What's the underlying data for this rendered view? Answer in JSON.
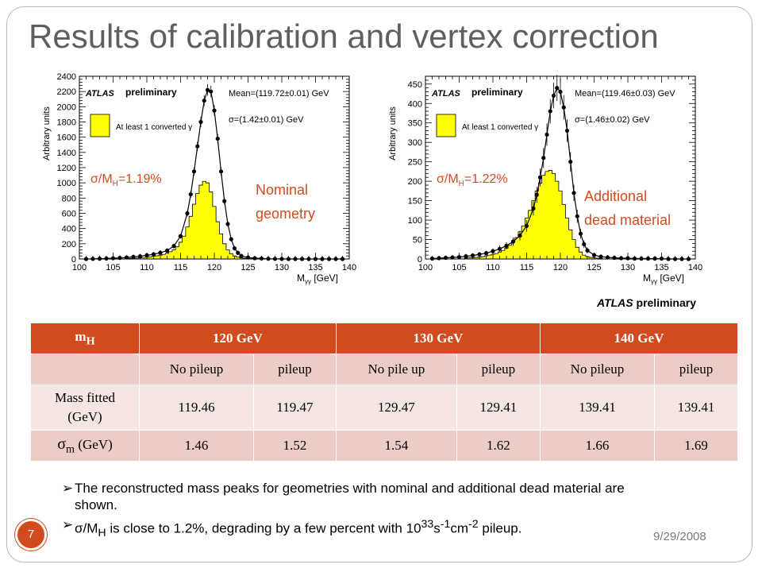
{
  "slide": {
    "title": "Results of calibration and vertex correction",
    "atlas_preliminary_bold": "ATLAS",
    "atlas_preliminary_rest": " preliminary",
    "page_number": "7",
    "date": "9/29/2008",
    "accent_color": "#d24b1f"
  },
  "chart_data": [
    {
      "type": "histogram",
      "xlabel": "M",
      "xlabel_sub": "γγ",
      "xlabel_unit": " [GeV]",
      "ylabel": "Arbitrary units",
      "xlim": [
        100,
        140
      ],
      "ylim": [
        0,
        2400
      ],
      "xticks": [
        100,
        105,
        110,
        115,
        120,
        125,
        130,
        135,
        140
      ],
      "yticks": [
        0,
        200,
        400,
        600,
        800,
        1000,
        1200,
        1400,
        1600,
        1800,
        2000,
        2200,
        2400
      ],
      "atlas_label": "ATLAS",
      "prelim_label": "preliminary",
      "legend": "At least 1 converted γ",
      "mean_text": "Mean=(119.72±0.01) GeV",
      "sigma_text": "σ=(1.42±0.01) GeV",
      "resolution_text": "σ/M",
      "resolution_sub": "H",
      "resolution_value": "=1.19%",
      "geometry_line1": "Nominal",
      "geometry_line2": "geometry",
      "hist_bin_width": 0.5,
      "hist_x": [
        107,
        107.5,
        108,
        108.5,
        109,
        109.5,
        110,
        110.5,
        111,
        111.5,
        112,
        112.5,
        113,
        113.5,
        114,
        114.5,
        115,
        115.5,
        116,
        116.5,
        117,
        117.5,
        118,
        118.5,
        119,
        119.5,
        120,
        120.5,
        121,
        121.5,
        122,
        122.5,
        123,
        123.5,
        124,
        124.5,
        125,
        125.5,
        126
      ],
      "hist_y": [
        5,
        8,
        10,
        12,
        15,
        18,
        22,
        28,
        35,
        42,
        50,
        60,
        75,
        95,
        120,
        160,
        220,
        300,
        420,
        560,
        720,
        860,
        970,
        1020,
        1000,
        880,
        690,
        490,
        330,
        200,
        120,
        70,
        40,
        25,
        15,
        10,
        7,
        5,
        3
      ],
      "points_x": [
        101,
        102,
        103,
        104,
        105,
        106,
        107,
        108,
        109,
        110,
        111,
        112,
        113,
        114,
        115,
        116,
        116.5,
        117,
        117.5,
        118,
        118.5,
        119,
        119.5,
        120,
        120.5,
        121,
        121.5,
        122,
        122.5,
        123,
        123.5,
        124,
        125,
        126,
        127,
        128,
        129,
        130,
        131,
        132,
        133,
        134,
        135,
        136,
        137,
        138,
        139
      ],
      "points_y": [
        0,
        2,
        4,
        6,
        10,
        14,
        20,
        28,
        36,
        48,
        62,
        82,
        110,
        170,
        300,
        600,
        850,
        1150,
        1480,
        1800,
        2080,
        2220,
        2200,
        1950,
        1580,
        1150,
        760,
        460,
        260,
        140,
        80,
        40,
        20,
        10,
        6,
        3,
        2,
        1,
        0,
        0,
        0,
        0,
        0,
        0,
        0,
        0,
        0
      ]
    },
    {
      "type": "histogram",
      "xlabel": "M",
      "xlabel_sub": "γγ",
      "xlabel_unit": " [GeV]",
      "ylabel": "Arbitrary units",
      "xlim": [
        100,
        140
      ],
      "ylim": [
        0,
        470
      ],
      "xticks": [
        100,
        105,
        110,
        115,
        120,
        125,
        130,
        135,
        140
      ],
      "yticks": [
        0,
        50,
        100,
        150,
        200,
        250,
        300,
        350,
        400,
        450
      ],
      "atlas_label": "ATLAS",
      "prelim_label": "preliminary",
      "legend": "At least 1 converted γ",
      "mean_text": "Mean=(119.46±0.03) GeV",
      "sigma_text": "σ=(1.46±0.02) GeV",
      "resolution_text": "σ/M",
      "resolution_sub": "H",
      "resolution_value": "=1.22%",
      "geometry_line1": "Additional",
      "geometry_line2": "dead material",
      "hist_bin_width": 0.5,
      "hist_x": [
        106,
        106.5,
        107,
        107.5,
        108,
        108.5,
        109,
        109.5,
        110,
        110.5,
        111,
        111.5,
        112,
        112.5,
        113,
        113.5,
        114,
        114.5,
        115,
        115.5,
        116,
        116.5,
        117,
        117.5,
        118,
        118.5,
        119,
        119.5,
        120,
        120.5,
        121,
        121.5,
        122,
        122.5,
        123,
        123.5,
        124,
        124.5,
        125,
        125.5,
        126
      ],
      "hist_y": [
        2,
        3,
        3,
        4,
        5,
        6,
        8,
        10,
        12,
        14,
        18,
        22,
        28,
        35,
        45,
        55,
        70,
        85,
        105,
        125,
        150,
        175,
        195,
        215,
        225,
        228,
        220,
        200,
        175,
        140,
        105,
        75,
        50,
        30,
        18,
        10,
        6,
        4,
        3,
        2,
        1
      ],
      "points_x": [
        101,
        102,
        103,
        104,
        105,
        106,
        107,
        108,
        109,
        110,
        111,
        112,
        113,
        114,
        115,
        116,
        116.5,
        117,
        117.5,
        118,
        118.5,
        119,
        119.5,
        120,
        120.5,
        121,
        121.5,
        122,
        122.5,
        123,
        123.5,
        124,
        125,
        126,
        127,
        128,
        129,
        130,
        131,
        132,
        133,
        134,
        135,
        136,
        137,
        138,
        139
      ],
      "points_y": [
        1,
        2,
        3,
        4,
        5,
        7,
        9,
        12,
        15,
        20,
        26,
        34,
        45,
        60,
        85,
        130,
        165,
        210,
        260,
        320,
        380,
        420,
        440,
        430,
        390,
        330,
        250,
        170,
        110,
        65,
        38,
        22,
        10,
        6,
        4,
        3,
        2,
        2,
        1,
        1,
        1,
        1,
        1,
        0,
        0,
        0,
        0
      ]
    }
  ],
  "table": {
    "header": [
      "m",
      "120 GeV",
      "130 GeV",
      "140 GeV"
    ],
    "header_sub": "H",
    "sub_header": [
      "No pileup",
      "pileup",
      "No pile up",
      "pileup",
      "No pileup",
      "pileup"
    ],
    "mass_label_line1": "Mass fitted",
    "mass_label_line2": "(GeV)",
    "mass_values": [
      "119.46",
      "119.47",
      "129.47",
      "129.41",
      "139.41",
      "139.41"
    ],
    "sigma_symbol": "σ",
    "sigma_sub": "m",
    "sigma_unit": " (GeV)",
    "sigma_values": [
      "1.46",
      "1.52",
      "1.54",
      "1.62",
      "1.66",
      "1.69"
    ]
  },
  "bullets": {
    "b1": "The reconstructed mass peaks for geometries with nominal and additional dead material are shown.",
    "b2_sigma": "σ/M",
    "b2_sub": "H",
    "b2_text1": "  is close to 1.2%, degrading by a few percent with 10",
    "b2_exp": "33",
    "b2_text2": "s",
    "b2_exp2": "-1",
    "b2_text3": "cm",
    "b2_exp3": "-2",
    "b2_text4": " pileup."
  }
}
